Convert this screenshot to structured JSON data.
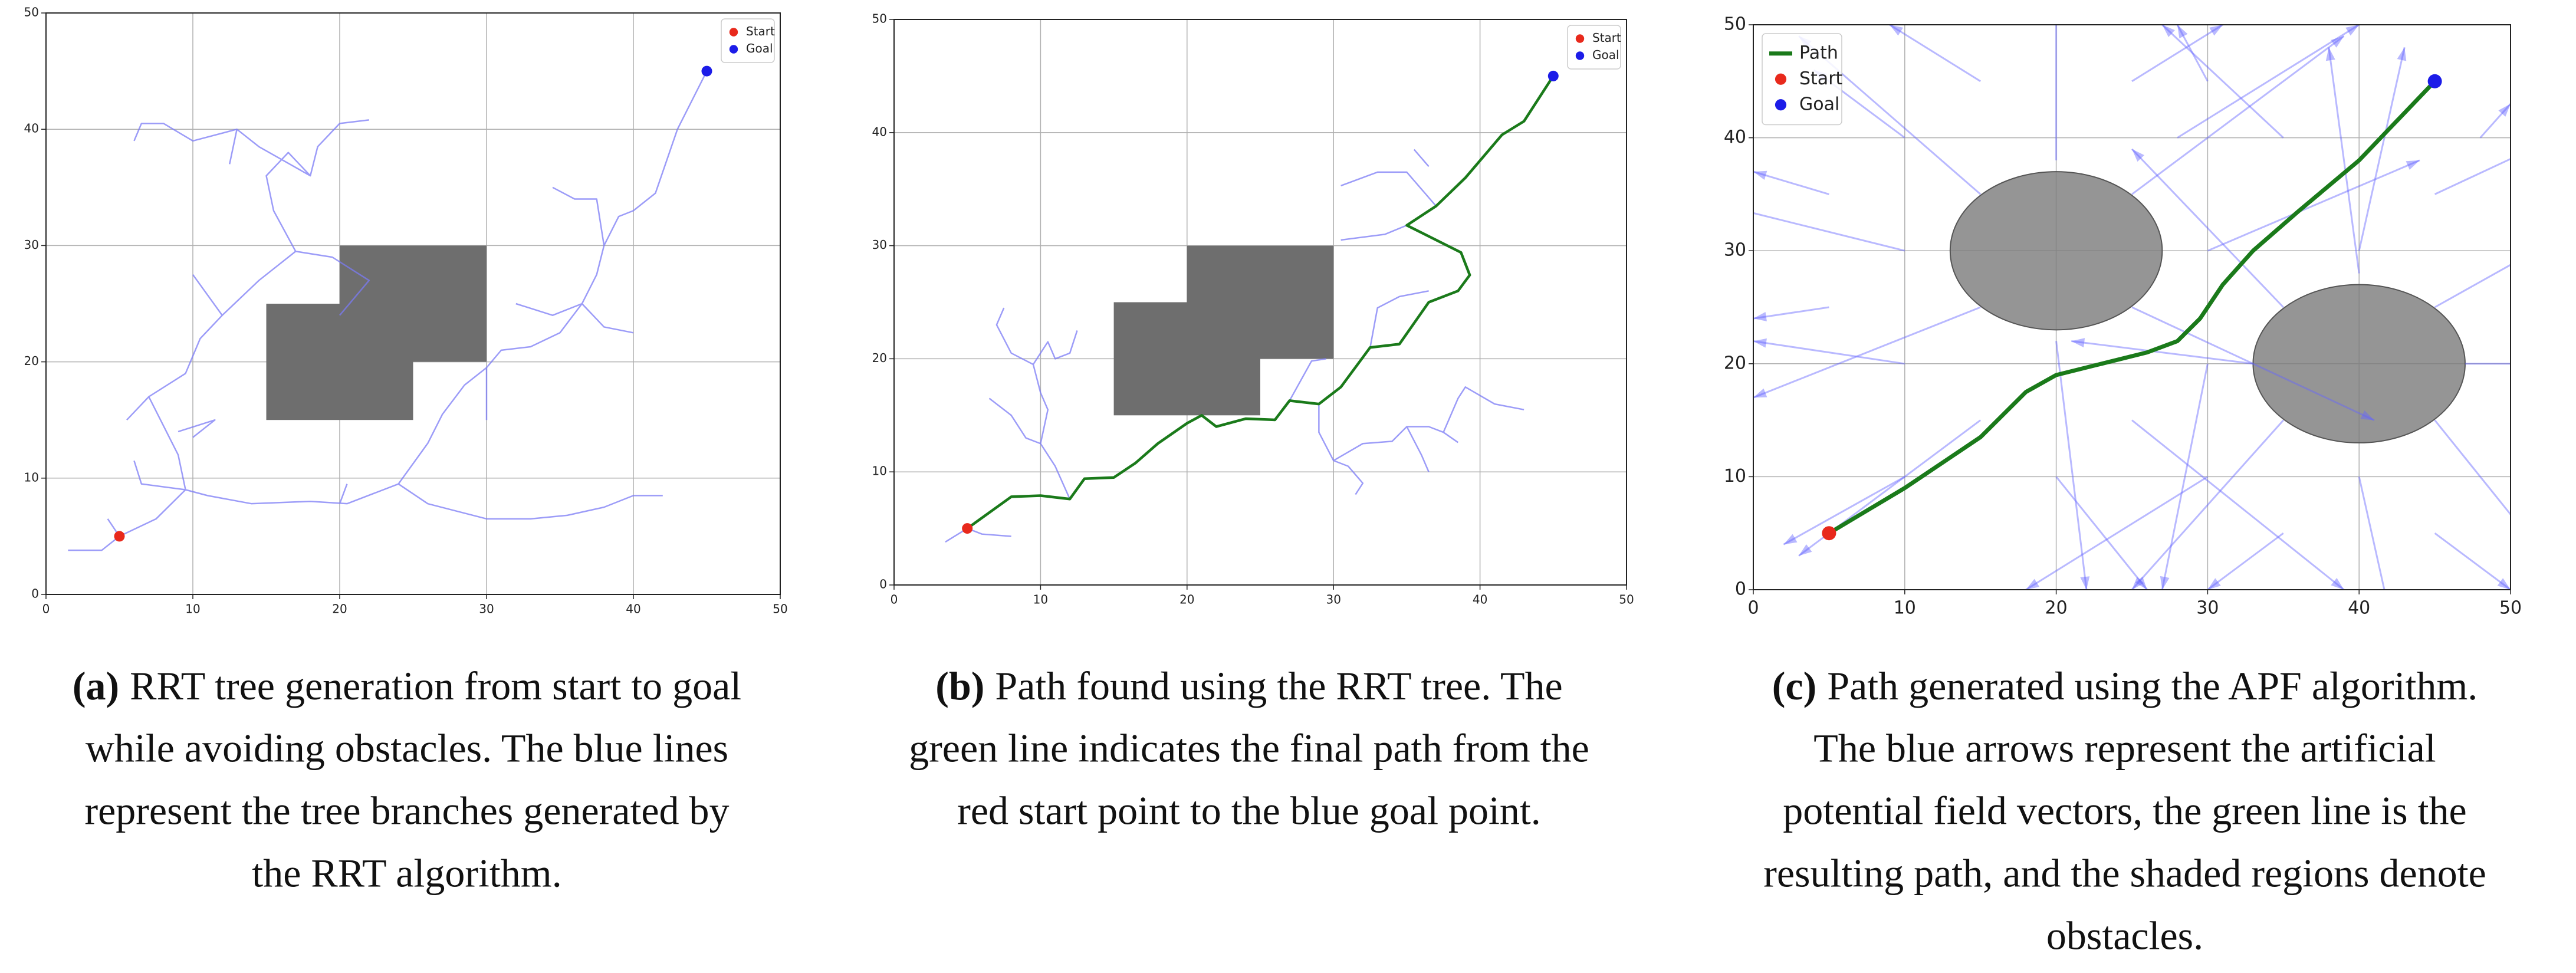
{
  "chart_data": [
    {
      "type": "line",
      "xlim": [
        0,
        50
      ],
      "ylim": [
        0,
        50
      ],
      "xticks": [
        0,
        10,
        20,
        30,
        40,
        50
      ],
      "yticks": [
        0,
        10,
        20,
        30,
        40,
        50
      ],
      "grid": true,
      "legend": "upper right",
      "obstacles": [
        {
          "x": 20,
          "y": 20,
          "width": 10,
          "height": 10
        },
        {
          "x": 15,
          "y": 15,
          "width": 10,
          "height": 10
        }
      ],
      "series": [
        {
          "type": "line",
          "color": "#7b7bf5",
          "x": [
            1.5,
            3.8,
            5,
            7.5,
            9.5,
            11,
            14,
            18,
            20.5,
            24,
            26,
            30,
            33,
            35.5,
            38,
            40,
            42,
            null,
            5,
            4.2,
            null,
            9.5,
            9,
            8,
            7,
            9.5,
            10.5,
            12,
            14.5,
            17,
            19.5,
            22,
            20,
            null,
            9,
            11.5,
            10,
            null,
            7,
            5.5,
            null,
            12,
            10,
            null,
            17,
            15.5,
            15,
            16.5,
            18,
            14.5,
            13,
            10,
            8,
            6.5,
            6,
            null,
            18,
            18.5,
            20,
            22,
            null,
            13,
            12.5,
            null,
            24,
            26,
            27,
            28.5,
            30,
            31,
            33,
            35,
            36.5,
            37.5,
            38,
            39,
            40,
            41.5,
            43,
            45,
            null,
            36.5,
            34.5,
            32,
            null,
            38,
            37.5,
            36,
            34.5,
            null,
            36.5,
            38,
            40,
            null,
            20.5,
            20,
            null,
            30,
            30,
            null,
            9.5,
            6.5,
            6
          ],
          "y": [
            3.8,
            3.8,
            5,
            6.5,
            9,
            8.5,
            7.8,
            8,
            7.8,
            9.5,
            7.8,
            6.5,
            6.5,
            6.8,
            7.5,
            8.5,
            8.5,
            null,
            5,
            6.5,
            null,
            9,
            12,
            14.5,
            17,
            19,
            22,
            24,
            27,
            29.5,
            29,
            27,
            24,
            null,
            14,
            15,
            13.5,
            null,
            17,
            15,
            null,
            24,
            27.5,
            null,
            29.5,
            33,
            36,
            38,
            36,
            38.5,
            40,
            39,
            40.5,
            40.5,
            39,
            null,
            36,
            38.5,
            40.5,
            40.8,
            null,
            40,
            37,
            null,
            9.5,
            13,
            15.5,
            18,
            19.5,
            21,
            21.3,
            22.5,
            25,
            27.5,
            30,
            32.5,
            33,
            34.5,
            40,
            45,
            null,
            25,
            24,
            25,
            null,
            30,
            34,
            34,
            35,
            null,
            25,
            23,
            22.5,
            null,
            9.5,
            7.8,
            null,
            19.5,
            15,
            null,
            9,
            9.5,
            11.5
          ]
        },
        {
          "type": "scatter",
          "name": "Start",
          "color": "#e8291c",
          "x": [
            5
          ],
          "y": [
            5
          ]
        },
        {
          "type": "scatter",
          "name": "Goal",
          "color": "#1c1ce8",
          "x": [
            45
          ],
          "y": [
            45
          ]
        }
      ]
    },
    {
      "type": "line",
      "xlim": [
        0,
        50
      ],
      "ylim": [
        0,
        50
      ],
      "xticks": [
        0,
        10,
        20,
        30,
        40,
        50
      ],
      "yticks": [
        0,
        10,
        20,
        30,
        40,
        50
      ],
      "grid": true,
      "legend": "upper right",
      "obstacles": [
        {
          "x": 20,
          "y": 20,
          "width": 10,
          "height": 10
        },
        {
          "x": 15,
          "y": 15,
          "width": 10,
          "height": 10
        }
      ],
      "series": [
        {
          "type": "line",
          "color": "#7b7bf5",
          "x": [
            3.5,
            5,
            6,
            8,
            null,
            12,
            11,
            10,
            9,
            8,
            6.5,
            null,
            10,
            10.5,
            10,
            9.5,
            10.5,
            11,
            12,
            12.5,
            null,
            9.5,
            8,
            7,
            7.5,
            null,
            27,
            28.5,
            29.5,
            null,
            29,
            29,
            30,
            31,
            32,
            31.5,
            null,
            30,
            32,
            34,
            35,
            36.5,
            37.5,
            38.5,
            null,
            37.5,
            38.5,
            39,
            41,
            43,
            null,
            35,
            36,
            36.5,
            null,
            32.5,
            33,
            34.5,
            36.5,
            null,
            35,
            33.5,
            30.5,
            null,
            37,
            35,
            33,
            30.5,
            null,
            36.5,
            35.5
          ],
          "y": [
            3.8,
            5,
            4.5,
            4.3,
            null,
            7.6,
            10.5,
            12.5,
            13,
            15,
            16.5,
            null,
            12.5,
            15.5,
            17,
            19.5,
            21.5,
            20,
            20.5,
            22.5,
            null,
            19.5,
            20.5,
            23,
            24.5,
            null,
            16.3,
            19.8,
            20,
            null,
            16,
            13.5,
            11,
            10.5,
            9,
            8,
            null,
            11,
            12.5,
            12.7,
            14,
            14,
            13.5,
            12.6,
            null,
            13.5,
            16.5,
            17.5,
            16,
            15.5,
            null,
            14,
            11.5,
            10,
            null,
            21,
            24.5,
            25.5,
            26,
            null,
            31.8,
            31,
            30.5,
            null,
            33.5,
            36.5,
            36.5,
            35.3,
            null,
            37,
            38.5
          ]
        },
        {
          "type": "line",
          "color": "#1a7a1a",
          "x": [
            5,
            8,
            10,
            12,
            13,
            15,
            16.5,
            18,
            20,
            21,
            22,
            24,
            26,
            27,
            29,
            30.5,
            32.5,
            34.5,
            36.5,
            38.5,
            39.3,
            38.7,
            35,
            37,
            39,
            41.5,
            43,
            45
          ],
          "y": [
            5,
            7.8,
            7.9,
            7.6,
            9.4,
            9.5,
            10.8,
            12.5,
            14.3,
            15,
            14,
            14.7,
            14.6,
            16.3,
            16,
            17.5,
            21,
            21.3,
            25,
            26,
            27.4,
            29.4,
            31.8,
            33.5,
            36,
            39.8,
            41,
            45
          ]
        },
        {
          "type": "scatter",
          "name": "Start",
          "color": "#e8291c",
          "x": [
            5
          ],
          "y": [
            5
          ]
        },
        {
          "type": "scatter",
          "name": "Goal",
          "color": "#1c1ce8",
          "x": [
            45
          ],
          "y": [
            45
          ]
        }
      ]
    },
    {
      "type": "line",
      "xlim": [
        0,
        50
      ],
      "ylim": [
        0,
        50
      ],
      "xticks": [
        0,
        10,
        20,
        30,
        40,
        50
      ],
      "yticks": [
        0,
        10,
        20,
        30,
        40,
        50
      ],
      "grid": true,
      "legend": "upper left",
      "ellipses": [
        {
          "cx": 20,
          "cy": 30,
          "rx": 7,
          "ry": 7
        },
        {
          "cx": 40,
          "cy": 20,
          "rx": 7,
          "ry": 7
        }
      ],
      "series": [
        {
          "type": "quiver",
          "color": "#6464ff",
          "x": [
            10,
            15,
            25,
            25,
            15,
            20,
            20,
            30,
            10,
            30,
            35,
            45,
            45,
            35,
            40,
            40,
            30,
            47,
            33,
            40,
            25,
            15,
            20,
            5,
            10,
            28,
            35,
            45,
            45,
            35,
            10,
            15,
            25,
            5,
            48,
            30
          ],
          "y": [
            30,
            35,
            35,
            25,
            25,
            22,
            38,
            30,
            20,
            20,
            25,
            25,
            15,
            15,
            10,
            30,
            10,
            20,
            20,
            28,
            15,
            15,
            10,
            35,
            40,
            40,
            40,
            35,
            5,
            5,
            10,
            45,
            45,
            25,
            40,
            45
          ],
          "u": [
            -12,
            -12,
            14,
            16,
            -15,
            2,
            0,
            14,
            -10,
            -3,
            -10,
            8,
            6,
            -10,
            2,
            3,
            -12,
            5,
            -12,
            -2,
            14,
            -12,
            6,
            -5,
            -6,
            12,
            -8,
            8,
            5,
            -5,
            -8,
            -6,
            6,
            -5,
            2,
            -2
          ],
          "v": [
            4,
            14,
            14,
            -10,
            -8,
            -22,
            14,
            8,
            2,
            -20,
            14,
            6,
            -10,
            -15,
            -12,
            18,
            -10,
            0,
            2,
            20,
            -15,
            -12,
            -10,
            2,
            6,
            10,
            10,
            5,
            -5,
            -5,
            -6,
            5,
            5,
            -1,
            3,
            5
          ]
        },
        {
          "type": "line",
          "name": "Path",
          "color": "#1a7a1a",
          "x": [
            5,
            10,
            15,
            18,
            20,
            23,
            26,
            28,
            29.5,
            31,
            33,
            36,
            40,
            45
          ],
          "y": [
            5,
            9,
            13.5,
            17.5,
            19,
            20,
            21,
            22,
            24,
            27,
            30,
            33.5,
            38,
            45
          ]
        },
        {
          "type": "scatter",
          "name": "Start",
          "color": "#e8291c",
          "x": [
            5
          ],
          "y": [
            5
          ]
        },
        {
          "type": "scatter",
          "name": "Goal",
          "color": "#1c1ce8",
          "x": [
            45
          ],
          "y": [
            45
          ]
        }
      ]
    }
  ],
  "captions": [
    {
      "label": "(a)",
      "lines": [
        "RRT tree generation from start to goal",
        "while avoiding obstacles. The blue lines",
        "represent the tree branches generated by",
        "the RRT algorithm."
      ]
    },
    {
      "label": "(b)",
      "lines": [
        "Path found using the RRT tree. The",
        "green line indicates the final path from the",
        "red start point to the blue goal point."
      ]
    },
    {
      "label": "(c)",
      "lines": [
        "Path generated using the APF algorithm.",
        "The blue arrows represent the artificial",
        "potential field vectors, the green line is the",
        "resulting path, and the shaded regions denote",
        "obstacles."
      ]
    }
  ]
}
